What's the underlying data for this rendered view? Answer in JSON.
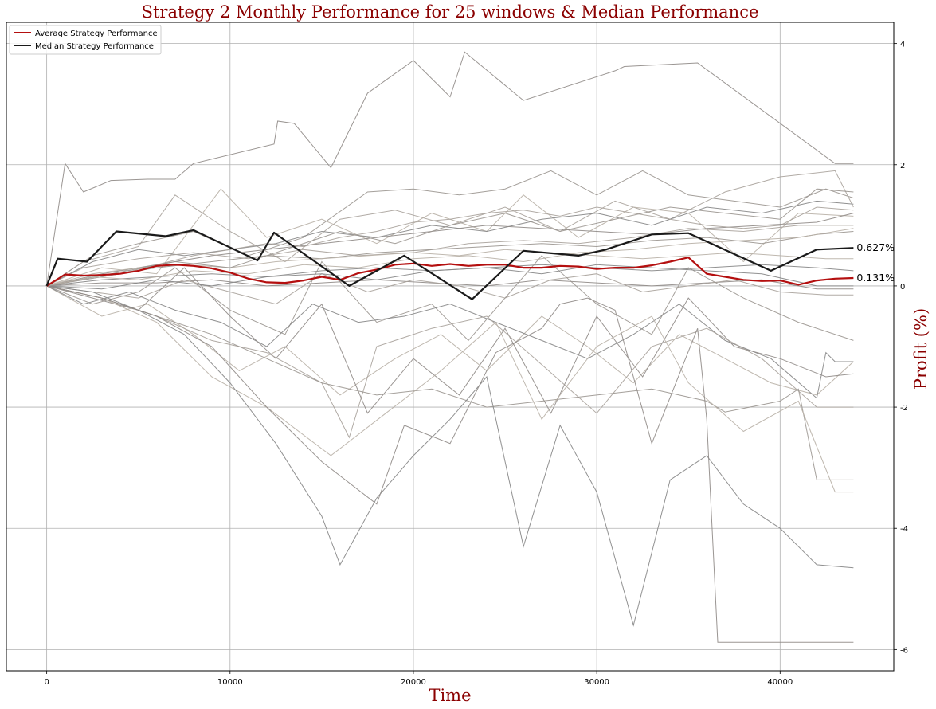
{
  "chart_data": {
    "type": "line",
    "title": "Strategy 2 Monthly Performance for 25 windows & Median Performance",
    "xlabel": "Time",
    "ylabel": "Profit (%)",
    "xlim": [
      -2200,
      46200
    ],
    "ylim": [
      -6.35,
      4.35
    ],
    "x_ticks": [
      0,
      10000,
      20000,
      30000,
      40000
    ],
    "x_tick_labels": [
      "0",
      "10000",
      "20000",
      "30000",
      "40000"
    ],
    "y_ticks": [
      4,
      2,
      0,
      -2,
      -4,
      -6
    ],
    "y_tick_labels": [
      "4",
      "2",
      "0",
      "-2",
      "-4",
      "-6"
    ],
    "y_axis_side": "right",
    "grid": true,
    "legend": {
      "position": "top-left",
      "entries": [
        "Average Strategy Performance",
        "Median Strategy Performance"
      ]
    },
    "annotations": [
      {
        "text": "0.627%",
        "x": 44000,
        "y": 0.627
      },
      {
        "text": "0.131%",
        "x": 44000,
        "y": 0.131
      }
    ],
    "series": [
      {
        "name": "Average Strategy Performance",
        "color": "#b40f0f",
        "x": [
          0,
          1000,
          2000,
          3000,
          4000,
          5000,
          6000,
          7000,
          8000,
          9000,
          10000,
          11000,
          12000,
          13000,
          14000,
          15000,
          16000,
          17000,
          18000,
          19000,
          20000,
          21000,
          22000,
          23000,
          24000,
          25000,
          26000,
          27000,
          28000,
          29000,
          30000,
          31000,
          32000,
          33000,
          34000,
          35000,
          36000,
          37000,
          38000,
          39000,
          40000,
          41000,
          42000,
          43000,
          44000
        ],
        "y": [
          0,
          0.19,
          0.17,
          0.18,
          0.2,
          0.25,
          0.33,
          0.35,
          0.33,
          0.29,
          0.22,
          0.12,
          0.06,
          0.05,
          0.09,
          0.15,
          0.1,
          0.21,
          0.27,
          0.35,
          0.37,
          0.33,
          0.36,
          0.33,
          0.35,
          0.35,
          0.3,
          0.3,
          0.33,
          0.32,
          0.28,
          0.3,
          0.3,
          0.34,
          0.4,
          0.47,
          0.2,
          0.15,
          0.1,
          0.08,
          0.09,
          0.02,
          0.09,
          0.12,
          0.131
        ]
      },
      {
        "name": "Median Strategy Performance",
        "color": "#1a1a1a",
        "x": [
          0,
          600,
          2200,
          3800,
          6500,
          8000,
          11500,
          12400,
          16500,
          19500,
          23200,
          26000,
          29000,
          30500,
          33000,
          35000,
          39500,
          42000,
          44000
        ],
        "y": [
          0,
          0.45,
          0.4,
          0.9,
          0.82,
          0.92,
          0.42,
          0.88,
          0.0,
          0.5,
          -0.22,
          0.58,
          0.5,
          0.6,
          0.85,
          0.87,
          0.25,
          0.6,
          0.627
        ]
      }
    ],
    "background_windows": [
      {
        "x": [
          0,
          1000,
          2000,
          3500,
          5500,
          7000,
          8000,
          12400,
          12600,
          13500,
          15500,
          17500,
          20000,
          22000,
          22800,
          26000,
          31000,
          31500,
          35500,
          43000,
          44000
        ],
        "y": [
          0,
          2.02,
          1.55,
          1.74,
          1.76,
          1.76,
          2.02,
          2.34,
          2.72,
          2.68,
          1.95,
          3.18,
          3.72,
          3.12,
          3.86,
          3.06,
          3.55,
          3.62,
          3.68,
          2.02,
          2.02
        ]
      },
      {
        "x": [
          0,
          2000,
          5000,
          7000,
          10000,
          13000,
          16000,
          19000,
          22000,
          25000,
          28000,
          31000,
          34000,
          37000,
          40000,
          43000,
          44000
        ],
        "y": [
          0,
          0.4,
          0.65,
          1.5,
          0.9,
          0.4,
          1.1,
          1.25,
          1.0,
          1.3,
          0.9,
          1.4,
          1.1,
          1.55,
          1.8,
          1.9,
          1.3
        ]
      },
      {
        "x": [
          0,
          2500,
          5000,
          8000,
          11000,
          14000,
          17500,
          20000,
          22500,
          25000,
          27500,
          30000,
          32500,
          35000,
          37500,
          40000,
          42500,
          44000
        ],
        "y": [
          0,
          0.5,
          0.7,
          0.9,
          0.5,
          0.8,
          1.55,
          1.6,
          1.5,
          1.6,
          1.9,
          1.5,
          1.9,
          1.5,
          1.4,
          1.3,
          1.6,
          1.45
        ]
      },
      {
        "x": [
          0,
          3000,
          6000,
          9500,
          12000,
          15000,
          18000,
          21000,
          24000,
          26000,
          29000,
          32000,
          35000,
          38000,
          41000,
          44000
        ],
        "y": [
          0,
          0.3,
          0.2,
          1.6,
          0.8,
          1.1,
          0.7,
          1.2,
          0.9,
          1.5,
          0.8,
          1.3,
          1.2,
          0.4,
          1.2,
          1.15
        ]
      },
      {
        "x": [
          0,
          2500,
          5000,
          7500,
          10000,
          12500,
          15000,
          18000,
          21000,
          24000,
          27000,
          30000,
          33000,
          36000,
          39000,
          42000,
          44000
        ],
        "y": [
          0,
          0.4,
          0.6,
          0.5,
          0.6,
          0.7,
          0.9,
          0.8,
          1.0,
          0.9,
          1.1,
          1.2,
          1.0,
          1.3,
          1.2,
          1.4,
          1.35
        ]
      },
      {
        "x": [
          0,
          3000,
          6000,
          9000,
          12000,
          15000,
          18000,
          21000,
          24000,
          27000,
          30000,
          33000,
          36000,
          39000,
          42000,
          44000
        ],
        "y": [
          0,
          0.2,
          0.35,
          0.5,
          0.6,
          0.7,
          0.8,
          0.9,
          1.0,
          0.95,
          0.9,
          0.85,
          0.95,
          1.0,
          1.05,
          1.2
        ]
      },
      {
        "x": [
          0,
          2000,
          5000,
          8000,
          11000,
          14000,
          17000,
          20000,
          23000,
          26000,
          29000,
          32000,
          35000,
          38000,
          41000,
          44000
        ],
        "y": [
          0,
          0.3,
          0.45,
          0.55,
          0.45,
          0.6,
          0.5,
          0.55,
          0.7,
          0.75,
          0.7,
          0.8,
          0.95,
          0.9,
          1.0,
          1.0
        ]
      },
      {
        "x": [
          0,
          3000,
          6000,
          9000,
          12000,
          15000,
          18000,
          21000,
          24000,
          27000,
          30000,
          33000,
          36000,
          39000,
          42000,
          44000
        ],
        "y": [
          0,
          0.15,
          0.3,
          0.4,
          0.5,
          0.45,
          0.55,
          0.6,
          0.65,
          0.7,
          0.65,
          0.75,
          0.8,
          0.7,
          0.85,
          0.9
        ]
      },
      {
        "x": [
          0,
          2500,
          5000,
          7500,
          10000,
          12500,
          15000,
          17500,
          20000,
          22500,
          25000,
          27500,
          30000,
          32500,
          35000,
          37500,
          40000,
          42500,
          44000
        ],
        "y": [
          0,
          0.2,
          0.3,
          0.35,
          0.3,
          0.4,
          0.45,
          0.5,
          0.55,
          0.5,
          0.6,
          0.55,
          0.5,
          0.45,
          0.5,
          0.55,
          0.5,
          0.45,
          0.45
        ]
      },
      {
        "x": [
          0,
          3000,
          6000,
          9000,
          12000,
          15000,
          18000,
          21000,
          24000,
          27000,
          30000,
          33000,
          36000,
          39000,
          42000,
          44000
        ],
        "y": [
          0,
          0.1,
          0.15,
          0.2,
          0.15,
          0.25,
          0.3,
          0.25,
          0.3,
          0.35,
          0.3,
          0.25,
          0.3,
          0.35,
          0.3,
          0.25
        ]
      },
      {
        "x": [
          0,
          3000,
          6000,
          9000,
          12000,
          15000,
          18000,
          21000,
          24000,
          27000,
          30000,
          33000,
          36000,
          39000,
          42000,
          44000
        ],
        "y": [
          0,
          0.05,
          0.05,
          0.1,
          0.0,
          0.05,
          0.1,
          0.05,
          0.0,
          0.1,
          0.05,
          0.0,
          0.05,
          0.1,
          -0.05,
          -0.05
        ]
      },
      {
        "x": [
          0,
          2500,
          5000,
          7500,
          10000,
          12500,
          15000,
          17500,
          20000,
          22500,
          25000,
          27500,
          30000,
          32500,
          35000,
          37500,
          40000,
          42500,
          44000
        ],
        "y": [
          0,
          -0.1,
          -0.2,
          0.1,
          -0.1,
          -0.3,
          0.2,
          -0.1,
          0.1,
          0.0,
          -0.2,
          0.1,
          0.2,
          -0.1,
          0.0,
          0.1,
          -0.1,
          -0.15,
          -0.15
        ]
      },
      {
        "x": [
          0,
          2500,
          5000,
          7000,
          10000,
          13000,
          15000,
          18000,
          21000,
          23000,
          25000,
          27000,
          30000,
          33000,
          35000,
          38000,
          41000,
          44000
        ],
        "y": [
          0,
          -0.3,
          -0.1,
          0.3,
          -0.4,
          -0.8,
          0.4,
          -0.6,
          -0.3,
          -0.9,
          -0.2,
          0.5,
          -0.3,
          -0.8,
          0.3,
          -0.2,
          -0.6,
          -0.9
        ]
      },
      {
        "x": [
          0,
          3000,
          5500,
          8000,
          10500,
          13000,
          16000,
          19000,
          21500,
          24000,
          27000,
          29500,
          32000,
          34500,
          37000,
          39500,
          42000,
          44000
        ],
        "y": [
          0,
          -0.5,
          -0.3,
          -0.8,
          -1.4,
          -1.0,
          -1.8,
          -1.2,
          -0.8,
          -1.4,
          -0.5,
          -1.0,
          -1.6,
          -0.8,
          -1.2,
          -1.6,
          -1.8,
          -1.25
        ]
      },
      {
        "x": [
          0,
          2000,
          4500,
          7000,
          9500,
          12000,
          14500,
          17000,
          19500,
          22000,
          24500,
          27000,
          29500,
          32000,
          34500,
          37000,
          39500,
          42000,
          42500,
          43000,
          44000
        ],
        "y": [
          0,
          -0.3,
          -0.1,
          -0.4,
          -0.6,
          -1.0,
          -0.3,
          -0.6,
          -0.5,
          -0.3,
          -0.6,
          -0.9,
          -1.2,
          -0.8,
          -0.3,
          -0.9,
          -1.2,
          -1.85,
          -1.1,
          -1.25,
          -1.25
        ]
      },
      {
        "x": [
          0,
          2500,
          5000,
          7500,
          10000,
          12500,
          15000,
          17500,
          20000,
          22500,
          25000,
          27500,
          30000,
          32500,
          35000,
          37500,
          40000,
          42500,
          44000
        ],
        "y": [
          0,
          -0.2,
          -0.4,
          0.3,
          -0.5,
          -1.2,
          -0.3,
          -2.1,
          -1.2,
          -1.8,
          -0.7,
          -2.1,
          -0.5,
          -1.5,
          -0.2,
          -1.0,
          -1.2,
          -1.5,
          -1.45
        ]
      },
      {
        "x": [
          0,
          3000,
          6000,
          9000,
          12000,
          15000,
          16500,
          18000,
          21000,
          24000,
          27000,
          30000,
          33000,
          36000,
          39000,
          42000,
          44000
        ],
        "y": [
          0,
          -0.2,
          -0.5,
          -0.9,
          -1.1,
          -1.6,
          -2.5,
          -1.0,
          -0.7,
          -0.5,
          -1.3,
          -2.1,
          -1.0,
          -0.7,
          -1.2,
          -2.0,
          -2.0
        ]
      },
      {
        "x": [
          0,
          3000,
          6000,
          9000,
          12000,
          15000,
          18000,
          21000,
          24000,
          27000,
          30000,
          33000,
          36000,
          37000,
          40000,
          41000,
          42000,
          44000
        ],
        "y": [
          0,
          -0.2,
          -0.5,
          -0.8,
          -1.2,
          -1.6,
          -1.8,
          -1.7,
          -2.0,
          -1.9,
          -1.8,
          -1.7,
          -1.9,
          -2.08,
          -1.9,
          -1.7,
          -3.2,
          -3.2
        ]
      },
      {
        "x": [
          0,
          3000,
          6000,
          9000,
          12000,
          15500,
          18500,
          21500,
          24500,
          27000,
          30000,
          33000,
          35000,
          38000,
          41000,
          43000,
          44000
        ],
        "y": [
          0,
          -0.2,
          -0.6,
          -1.5,
          -2.0,
          -2.8,
          -2.1,
          -1.4,
          -0.6,
          -2.2,
          -1.0,
          -0.5,
          -1.6,
          -2.4,
          -1.9,
          -3.4,
          -3.4
        ]
      },
      {
        "x": [
          0,
          2500,
          5000,
          7500,
          10000,
          12500,
          15000,
          16000,
          18000,
          20000,
          22000,
          24000,
          26000,
          28000,
          30000,
          32000,
          34000,
          36000,
          38000,
          40000,
          42000,
          44000
        ],
        "y": [
          0,
          -0.1,
          -0.4,
          -0.8,
          -1.6,
          -2.6,
          -3.8,
          -4.6,
          -3.5,
          -2.8,
          -2.2,
          -1.5,
          -4.3,
          -2.3,
          -3.4,
          -5.6,
          -3.2,
          -2.8,
          -3.6,
          -4.0,
          -4.6,
          -4.65
        ]
      },
      {
        "x": [
          0,
          3000,
          6000,
          9000,
          12000,
          15000,
          18000,
          19500,
          22000,
          23000,
          24500,
          27000,
          28000,
          29500,
          31000,
          33000,
          35500,
          36000,
          36600,
          38000,
          41000,
          44000
        ],
        "y": [
          0,
          -0.2,
          -0.5,
          -1.0,
          -2.0,
          -2.9,
          -3.6,
          -2.3,
          -2.6,
          -2.0,
          -1.1,
          -0.7,
          -0.3,
          -0.2,
          -0.4,
          -2.6,
          -0.7,
          -2.2,
          -5.88,
          -5.88,
          -5.88,
          -5.88
        ]
      },
      {
        "x": [
          0,
          2000,
          4000,
          6000,
          8000,
          10000,
          12000,
          14000,
          16000,
          18000,
          20000,
          22000,
          24000,
          26000,
          28000,
          30000,
          32000,
          34000,
          36000,
          38000,
          40000,
          42000,
          44000
        ],
        "y": [
          0,
          0.1,
          0.2,
          0.35,
          0.5,
          0.6,
          0.7,
          0.65,
          0.8,
          0.9,
          1.05,
          1.1,
          1.2,
          1.25,
          1.15,
          1.3,
          1.2,
          1.1,
          1.0,
          0.95,
          1.0,
          1.3,
          1.25
        ]
      },
      {
        "x": [
          0,
          3500,
          7000,
          10000,
          13000,
          16000,
          19000,
          22000,
          25000,
          28000,
          31000,
          34000,
          37000,
          40000,
          42000,
          44000
        ],
        "y": [
          0,
          0.2,
          0.4,
          0.3,
          0.6,
          0.9,
          0.7,
          1.0,
          1.2,
          0.9,
          1.1,
          1.3,
          1.2,
          1.1,
          1.6,
          1.55
        ]
      },
      {
        "x": [
          0,
          2500,
          5000,
          8000,
          11000,
          14000,
          17000,
          20000,
          23000,
          26000,
          29000,
          32000,
          35000,
          38000,
          41000,
          44000
        ],
        "y": [
          0,
          0.15,
          0.1,
          0.25,
          0.2,
          0.35,
          0.3,
          0.45,
          0.5,
          0.4,
          0.55,
          0.6,
          0.7,
          0.75,
          0.8,
          0.95
        ]
      },
      {
        "x": [
          0,
          3000,
          6000,
          9000,
          12000,
          15000,
          18000,
          21000,
          24000,
          27000,
          30000,
          33000,
          36000,
          39000,
          42000,
          44000
        ],
        "y": [
          0,
          -0.05,
          0.1,
          0.0,
          0.15,
          0.2,
          0.1,
          0.25,
          0.3,
          0.2,
          0.35,
          0.3,
          0.25,
          0.2,
          0.0,
          0.0
        ]
      }
    ]
  }
}
